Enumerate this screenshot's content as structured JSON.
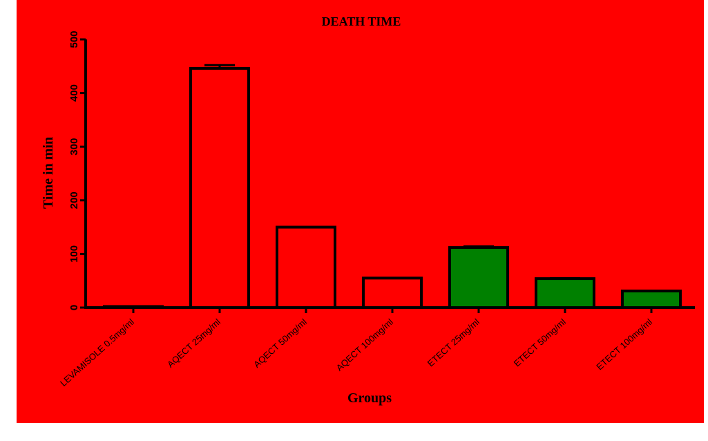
{
  "chart_data": {
    "type": "bar",
    "title": "DEATH TIME",
    "xlabel": "Groups",
    "ylabel": "Time in min",
    "ylim": [
      0,
      500
    ],
    "yticks": [
      0,
      100,
      200,
      300,
      400,
      500
    ],
    "categories": [
      "LEVAMISOLE 0.5mg/ml",
      "AQECT 25mg/ml",
      "AQECT 50mg/ml",
      "AQECT 100mg/ml",
      "ETECT 25mg/ml",
      "ETECT 50mg/ml",
      "ETECT 100mg/ml"
    ],
    "values": [
      2,
      446,
      150,
      55,
      112,
      54,
      31
    ],
    "errors": [
      0,
      6,
      0,
      0,
      2,
      1,
      0
    ],
    "bar_colors": [
      "#ff0000",
      "#ff0000",
      "#ff0000",
      "#ff0000",
      "#008000",
      "#008000",
      "#008000"
    ],
    "background_color": "#ff0000",
    "grid": false,
    "legend": "none"
  }
}
